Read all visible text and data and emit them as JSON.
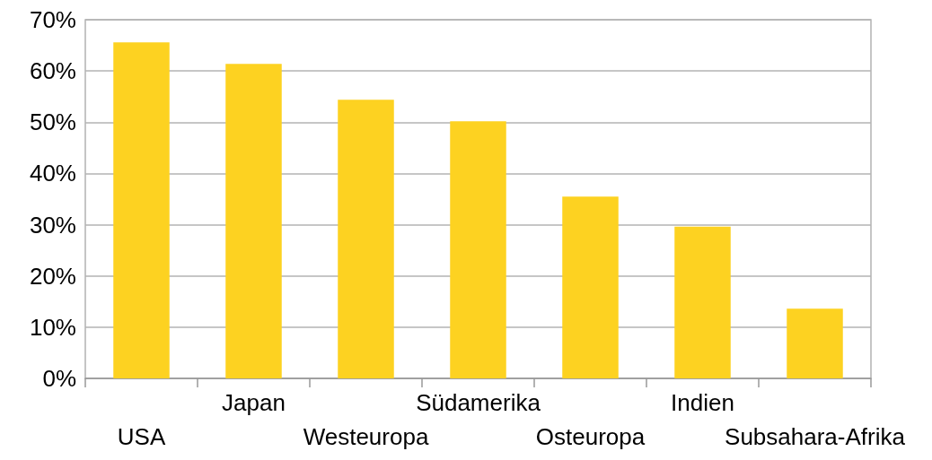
{
  "chart_data": {
    "type": "bar",
    "categories": [
      "USA",
      "Japan",
      "Westeuropa",
      "Südamerika",
      "Osteuropa",
      "Indien",
      "Subsahara-Afrika"
    ],
    "values": [
      65.6,
      61.4,
      54.4,
      50.2,
      35.5,
      29.6,
      13.6
    ],
    "color": "#fdd221",
    "ylim": [
      0,
      70
    ],
    "yticks": [
      {
        "value": 0,
        "label": "0%"
      },
      {
        "value": 10,
        "label": "10%"
      },
      {
        "value": 20,
        "label": "20%"
      },
      {
        "value": 30,
        "label": "30%"
      },
      {
        "value": 40,
        "label": "40%"
      },
      {
        "value": 50,
        "label": "50%"
      },
      {
        "value": 60,
        "label": "60%"
      },
      {
        "value": 70,
        "label": "70%"
      }
    ],
    "grid": "y"
  }
}
